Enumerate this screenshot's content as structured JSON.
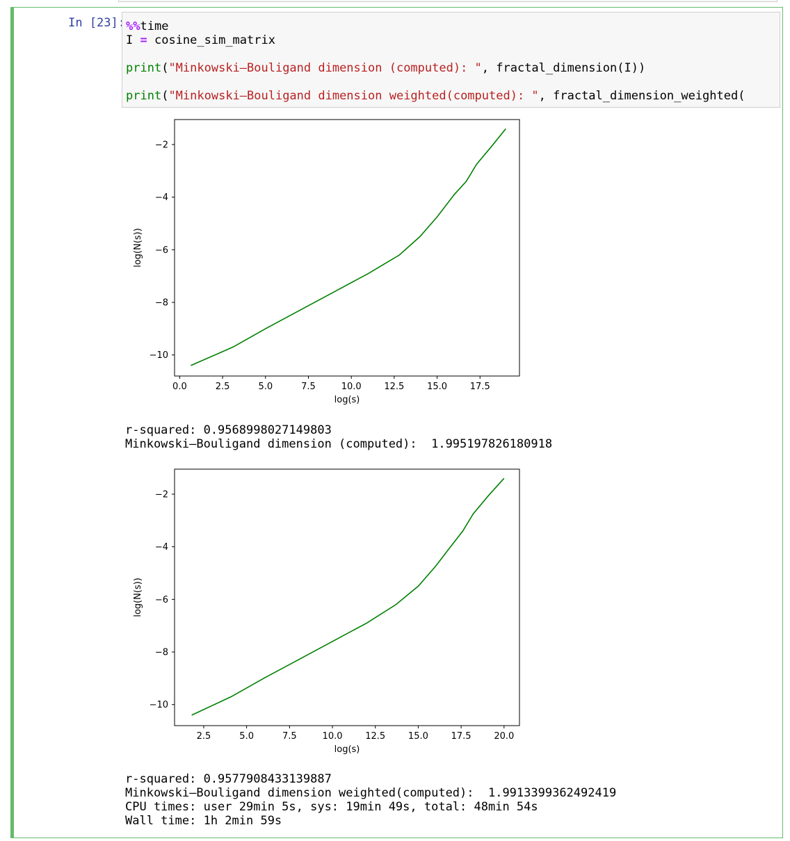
{
  "cell": {
    "prompt": "In [23]:",
    "code_lines": [
      [
        {
          "t": "%%",
          "c": "magic"
        },
        {
          "t": "time",
          "c": ""
        }
      ],
      [
        {
          "t": "I ",
          "c": ""
        },
        {
          "t": "=",
          "c": "op"
        },
        {
          "t": " cosine_sim_matrix",
          "c": ""
        }
      ],
      [],
      [
        {
          "t": "print",
          "c": "kw"
        },
        {
          "t": "(",
          "c": ""
        },
        {
          "t": "\"Minkowski–Bouligand dimension (computed): \"",
          "c": "str"
        },
        {
          "t": ", fractal_dimension(I))",
          "c": ""
        }
      ],
      [],
      [
        {
          "t": "print",
          "c": "kw"
        },
        {
          "t": "(",
          "c": ""
        },
        {
          "t": "\"Minkowski–Bouligand dimension weighted(computed): \"",
          "c": "str"
        },
        {
          "t": ", fractal_dimension_weighted(",
          "c": ""
        }
      ]
    ]
  },
  "outputs": {
    "text1": "r-squared: 0.9568998027149803\nMinkowski–Bouligand dimension (computed):  1.995197826180918",
    "text2": "r-squared: 0.9577908433139887\nMinkowski–Bouligand dimension weighted(computed):  1.9913399362492419\nCPU times: user 29min 5s, sys: 19min 49s, total: 48min 54s\nWall time: 1h 2min 59s"
  },
  "chart_data": [
    {
      "type": "line",
      "xlabel": "log(s)",
      "ylabel": "log(N(s))",
      "xlim": [
        -0.3,
        19.8
      ],
      "ylim": [
        -10.8,
        -1.05
      ],
      "xticks": [
        0.0,
        2.5,
        5.0,
        7.5,
        10.0,
        12.5,
        15.0,
        17.5
      ],
      "xtick_labels": [
        "0.0",
        "2.5",
        "5.0",
        "7.5",
        "10.0",
        "12.5",
        "15.0",
        "17.5"
      ],
      "yticks": [
        -2,
        -4,
        -6,
        -8,
        -10
      ],
      "ytick_labels": [
        "−2",
        "−4",
        "−6",
        "−8",
        "−10"
      ],
      "color": "#008000",
      "series": [
        {
          "x": [
            0.65,
            3.1,
            5.0,
            7.0,
            9.0,
            11.0,
            12.8,
            14.0,
            15.0,
            16.0,
            16.7,
            17.3,
            18.2,
            19.0
          ],
          "y": [
            -10.4,
            -9.7,
            -9.0,
            -8.3,
            -7.6,
            -6.9,
            -6.2,
            -5.5,
            -4.75,
            -3.9,
            -3.4,
            -2.75,
            -2.05,
            -1.4
          ]
        }
      ]
    },
    {
      "type": "line",
      "xlabel": "log(s)",
      "ylabel": "log(N(s))",
      "xlim": [
        0.8,
        20.9
      ],
      "ylim": [
        -10.8,
        -1.05
      ],
      "xticks": [
        2.5,
        5.0,
        7.5,
        10.0,
        12.5,
        15.0,
        17.5,
        20.0
      ],
      "xtick_labels": [
        "2.5",
        "5.0",
        "7.5",
        "10.0",
        "12.5",
        "15.0",
        "17.5",
        "20.0"
      ],
      "yticks": [
        -2,
        -4,
        -6,
        -8,
        -10
      ],
      "ytick_labels": [
        "−2",
        "−4",
        "−6",
        "−8",
        "−10"
      ],
      "color": "#008000",
      "series": [
        {
          "x": [
            1.8,
            4.1,
            6.0,
            8.0,
            10.0,
            12.0,
            13.7,
            15.0,
            16.0,
            17.0,
            17.6,
            18.2,
            19.1,
            20.0
          ],
          "y": [
            -10.4,
            -9.7,
            -9.0,
            -8.3,
            -7.6,
            -6.9,
            -6.2,
            -5.5,
            -4.75,
            -3.9,
            -3.4,
            -2.75,
            -2.05,
            -1.4
          ]
        }
      ]
    }
  ]
}
